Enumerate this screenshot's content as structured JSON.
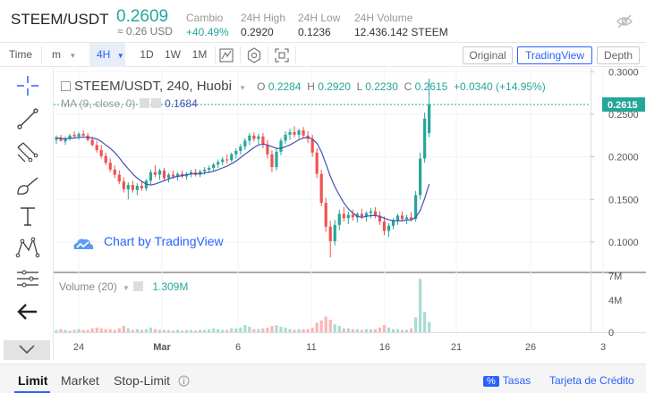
{
  "ticker": {
    "pair": "STEEM/USDT",
    "price": "0.2609",
    "approx": "≈ 0.26 USD",
    "stats": [
      {
        "label": "Cambio",
        "value": "+40.49%",
        "color": "#26a69a"
      },
      {
        "label": "24H High",
        "value": "0.2920"
      },
      {
        "label": "24H Low",
        "value": "0.1236"
      },
      {
        "label": "24H Volume",
        "value": "12.436.142 STEEM"
      }
    ],
    "hide_icon": "eye-off-icon"
  },
  "toolbar": {
    "time_label": "Time",
    "minutes_label": "m",
    "intervals": [
      "4H",
      "1D",
      "1W",
      "1M"
    ],
    "active_interval": "4H",
    "icons": [
      "candle-type-icon",
      "settings-icon",
      "fullscreen-icon"
    ],
    "views": [
      "Original",
      "TradingView",
      "Depth"
    ],
    "active_view": "TradingView"
  },
  "drawing_tools": [
    "crosshair-icon",
    "trend-line-icon",
    "pitchfork-icon",
    "brush-icon",
    "text-icon",
    "pattern-icon",
    "measure-icon",
    "back-arrow-icon"
  ],
  "chart_legend": {
    "title": "STEEM/USDT, 240, Huobi",
    "o_label": "O",
    "o": "0.2284",
    "h_label": "H",
    "h": "0.2920",
    "l_label": "L",
    "l": "0.2230",
    "c_label": "C",
    "c": "0.2615",
    "change": "+0.0340 (+14.95%)",
    "ma_label": "MA (9, close, 0)",
    "ma_value": "0.1684",
    "volume_label": "Volume (20)",
    "volume_value": "1.309M",
    "branding": "Chart by TradingView"
  },
  "chart_data": {
    "type": "candlestick",
    "last_price_label": "0.2615",
    "y_ticks": [
      "0.3000",
      "0.2500",
      "0.2000",
      "0.1500",
      "0.1000"
    ],
    "y_range": [
      0.0653,
      0.3045
    ],
    "vol_ticks": [
      "7M",
      "4M",
      "0"
    ],
    "vol_range": [
      0,
      7.5
    ],
    "x_ticks": [
      "24",
      "Mar",
      "6",
      "11",
      "16",
      "21",
      "26",
      "3"
    ],
    "colors": {
      "up": "#26a69a",
      "down": "#ef5350",
      "ma": "#3f51b5",
      "vol_up": "#a8dcd3",
      "vol_down": "#f6b7b5"
    },
    "candles": [
      [
        0.22,
        0.225,
        0.215,
        0.223
      ],
      [
        0.222,
        0.226,
        0.218,
        0.219
      ],
      [
        0.218,
        0.224,
        0.214,
        0.221
      ],
      [
        0.221,
        0.227,
        0.219,
        0.225
      ],
      [
        0.226,
        0.23,
        0.222,
        0.224
      ],
      [
        0.224,
        0.229,
        0.22,
        0.227
      ],
      [
        0.227,
        0.231,
        0.223,
        0.225
      ],
      [
        0.225,
        0.228,
        0.218,
        0.22
      ],
      [
        0.22,
        0.224,
        0.212,
        0.214
      ],
      [
        0.214,
        0.219,
        0.205,
        0.208
      ],
      [
        0.208,
        0.214,
        0.198,
        0.201
      ],
      [
        0.201,
        0.205,
        0.19,
        0.193
      ],
      [
        0.193,
        0.198,
        0.182,
        0.185
      ],
      [
        0.185,
        0.19,
        0.175,
        0.179
      ],
      [
        0.179,
        0.184,
        0.168,
        0.171
      ],
      [
        0.171,
        0.176,
        0.158,
        0.162
      ],
      [
        0.162,
        0.17,
        0.15,
        0.167
      ],
      [
        0.167,
        0.172,
        0.158,
        0.161
      ],
      [
        0.161,
        0.169,
        0.155,
        0.166
      ],
      [
        0.166,
        0.172,
        0.16,
        0.163
      ],
      [
        0.163,
        0.174,
        0.16,
        0.172
      ],
      [
        0.172,
        0.185,
        0.168,
        0.182
      ],
      [
        0.182,
        0.19,
        0.176,
        0.179
      ],
      [
        0.179,
        0.186,
        0.173,
        0.184
      ],
      [
        0.184,
        0.187,
        0.172,
        0.175
      ],
      [
        0.175,
        0.181,
        0.17,
        0.179
      ],
      [
        0.179,
        0.184,
        0.174,
        0.177
      ],
      [
        0.177,
        0.182,
        0.172,
        0.18
      ],
      [
        0.18,
        0.184,
        0.175,
        0.177
      ],
      [
        0.177,
        0.182,
        0.173,
        0.18
      ],
      [
        0.18,
        0.185,
        0.176,
        0.182
      ],
      [
        0.182,
        0.186,
        0.177,
        0.179
      ],
      [
        0.179,
        0.185,
        0.176,
        0.183
      ],
      [
        0.183,
        0.188,
        0.179,
        0.185
      ],
      [
        0.185,
        0.19,
        0.181,
        0.187
      ],
      [
        0.187,
        0.193,
        0.183,
        0.191
      ],
      [
        0.191,
        0.197,
        0.187,
        0.194
      ],
      [
        0.194,
        0.2,
        0.19,
        0.197
      ],
      [
        0.197,
        0.203,
        0.192,
        0.196
      ],
      [
        0.196,
        0.205,
        0.194,
        0.203
      ],
      [
        0.203,
        0.21,
        0.198,
        0.207
      ],
      [
        0.207,
        0.215,
        0.203,
        0.212
      ],
      [
        0.212,
        0.222,
        0.208,
        0.219
      ],
      [
        0.219,
        0.228,
        0.214,
        0.225
      ],
      [
        0.225,
        0.229,
        0.218,
        0.221
      ],
      [
        0.221,
        0.227,
        0.215,
        0.224
      ],
      [
        0.224,
        0.228,
        0.21,
        0.214
      ],
      [
        0.214,
        0.22,
        0.198,
        0.203
      ],
      [
        0.203,
        0.208,
        0.182,
        0.188
      ],
      [
        0.188,
        0.21,
        0.184,
        0.206
      ],
      [
        0.206,
        0.222,
        0.202,
        0.219
      ],
      [
        0.219,
        0.23,
        0.215,
        0.226
      ],
      [
        0.226,
        0.233,
        0.22,
        0.229
      ],
      [
        0.229,
        0.236,
        0.223,
        0.226
      ],
      [
        0.226,
        0.233,
        0.221,
        0.231
      ],
      [
        0.231,
        0.235,
        0.222,
        0.225
      ],
      [
        0.225,
        0.23,
        0.216,
        0.221
      ],
      [
        0.221,
        0.226,
        0.2,
        0.205
      ],
      [
        0.205,
        0.21,
        0.175,
        0.18
      ],
      [
        0.18,
        0.185,
        0.142,
        0.146
      ],
      [
        0.146,
        0.152,
        0.112,
        0.118
      ],
      [
        0.118,
        0.125,
        0.082,
        0.101
      ],
      [
        0.101,
        0.126,
        0.096,
        0.12
      ],
      [
        0.12,
        0.138,
        0.114,
        0.133
      ],
      [
        0.133,
        0.141,
        0.124,
        0.128
      ],
      [
        0.128,
        0.136,
        0.121,
        0.132
      ],
      [
        0.132,
        0.138,
        0.125,
        0.129
      ],
      [
        0.129,
        0.135,
        0.123,
        0.133
      ],
      [
        0.133,
        0.139,
        0.127,
        0.13
      ],
      [
        0.13,
        0.136,
        0.124,
        0.134
      ],
      [
        0.134,
        0.14,
        0.128,
        0.136
      ],
      [
        0.136,
        0.141,
        0.128,
        0.131
      ],
      [
        0.131,
        0.136,
        0.12,
        0.124
      ],
      [
        0.124,
        0.13,
        0.108,
        0.113
      ],
      [
        0.113,
        0.122,
        0.106,
        0.119
      ],
      [
        0.119,
        0.128,
        0.115,
        0.125
      ],
      [
        0.125,
        0.133,
        0.12,
        0.131
      ],
      [
        0.131,
        0.136,
        0.124,
        0.127
      ],
      [
        0.127,
        0.132,
        0.121,
        0.129
      ],
      [
        0.129,
        0.135,
        0.124,
        0.127
      ],
      [
        0.127,
        0.16,
        0.124,
        0.155
      ],
      [
        0.155,
        0.205,
        0.15,
        0.198
      ],
      [
        0.198,
        0.252,
        0.193,
        0.245
      ],
      [
        0.228,
        0.292,
        0.223,
        0.2615
      ]
    ],
    "ma": [
      0.222,
      0.222,
      0.221,
      0.222,
      0.222,
      0.223,
      0.223,
      0.223,
      0.222,
      0.221,
      0.218,
      0.214,
      0.21,
      0.205,
      0.199,
      0.192,
      0.186,
      0.18,
      0.175,
      0.171,
      0.168,
      0.167,
      0.168,
      0.17,
      0.172,
      0.174,
      0.176,
      0.177,
      0.178,
      0.179,
      0.18,
      0.18,
      0.18,
      0.181,
      0.182,
      0.183,
      0.185,
      0.187,
      0.189,
      0.192,
      0.195,
      0.199,
      0.203,
      0.207,
      0.211,
      0.214,
      0.215,
      0.214,
      0.212,
      0.21,
      0.21,
      0.212,
      0.214,
      0.217,
      0.22,
      0.222,
      0.223,
      0.221,
      0.216,
      0.206,
      0.192,
      0.177,
      0.165,
      0.155,
      0.146,
      0.139,
      0.134,
      0.13,
      0.129,
      0.13,
      0.131,
      0.131,
      0.13,
      0.128,
      0.126,
      0.125,
      0.125,
      0.125,
      0.126,
      0.126,
      0.129,
      0.137,
      0.151,
      0.168
    ],
    "volumes": [
      0.3,
      0.4,
      0.3,
      0.2,
      0.3,
      0.4,
      0.3,
      0.3,
      0.5,
      0.6,
      0.5,
      0.4,
      0.4,
      0.3,
      0.5,
      0.8,
      0.5,
      0.3,
      0.4,
      0.3,
      0.4,
      0.6,
      0.4,
      0.3,
      0.3,
      0.3,
      0.2,
      0.3,
      0.2,
      0.3,
      0.3,
      0.2,
      0.3,
      0.3,
      0.4,
      0.5,
      0.4,
      0.3,
      0.3,
      0.5,
      0.5,
      0.6,
      0.9,
      0.7,
      0.4,
      0.4,
      0.5,
      0.6,
      0.8,
      0.9,
      0.7,
      0.6,
      0.4,
      0.3,
      0.4,
      0.4,
      0.4,
      0.6,
      1.2,
      1.5,
      2.0,
      1.6,
      1.0,
      0.8,
      0.5,
      0.5,
      0.4,
      0.4,
      0.3,
      0.4,
      0.4,
      0.4,
      0.6,
      0.9,
      0.6,
      0.4,
      0.4,
      0.3,
      0.3,
      0.5,
      1.9,
      6.8,
      2.6,
      1.3
    ]
  },
  "order_tabs": {
    "tabs": [
      "Limit",
      "Market",
      "Stop-Limit"
    ],
    "active": "Limit",
    "info_icon": "info-icon",
    "rates_badge": "%",
    "rates_label": "Tasas",
    "card_label": "Tarjeta de Crédito"
  }
}
